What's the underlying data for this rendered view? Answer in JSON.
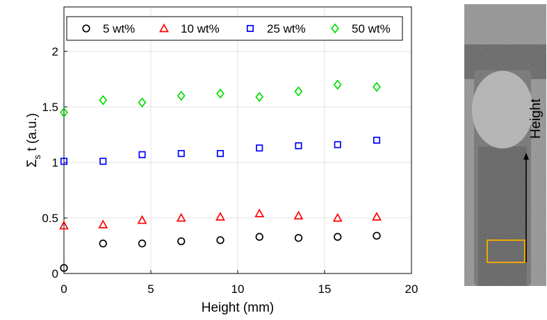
{
  "chart_data": {
    "type": "scatter",
    "xlabel": "Height (mm)",
    "ylabel_main": "Σ",
    "ylabel_sub": "s",
    "ylabel_rest": " t (a.u.)",
    "xlim": [
      0,
      20
    ],
    "ylim": [
      0,
      2.4
    ],
    "xticks": [
      0,
      5,
      10,
      15,
      20
    ],
    "yticks": [
      0,
      0.5,
      1,
      1.5,
      2
    ],
    "xtick_labels": [
      "0",
      "5",
      "10",
      "15",
      "20"
    ],
    "ytick_labels": [
      "0",
      "0.5",
      "1",
      "1.5",
      "2"
    ],
    "grid": true,
    "legend_position": "top",
    "x": [
      0,
      2.25,
      4.5,
      6.75,
      9.0,
      11.25,
      13.5,
      15.75,
      18.0
    ],
    "series": [
      {
        "name": "5 wt%",
        "marker": "circle",
        "color": "#000000",
        "values": [
          0.05,
          0.27,
          0.27,
          0.29,
          0.3,
          0.33,
          0.32,
          0.33,
          0.34
        ]
      },
      {
        "name": "10 wt%",
        "marker": "triangle",
        "color": "#ff0000",
        "values": [
          0.43,
          0.44,
          0.48,
          0.5,
          0.51,
          0.54,
          0.52,
          0.5,
          0.51
        ]
      },
      {
        "name": "25 wt%",
        "marker": "square",
        "color": "#0000ff",
        "values": [
          1.01,
          1.01,
          1.07,
          1.08,
          1.08,
          1.13,
          1.15,
          1.16,
          1.2
        ]
      },
      {
        "name": "50 wt%",
        "marker": "diamond",
        "color": "#00dd00",
        "values": [
          1.45,
          1.56,
          1.54,
          1.6,
          1.62,
          1.59,
          1.64,
          1.7,
          1.68
        ]
      }
    ]
  },
  "side_image": {
    "arrow_label": "Height",
    "box_color": "#f0a800"
  }
}
